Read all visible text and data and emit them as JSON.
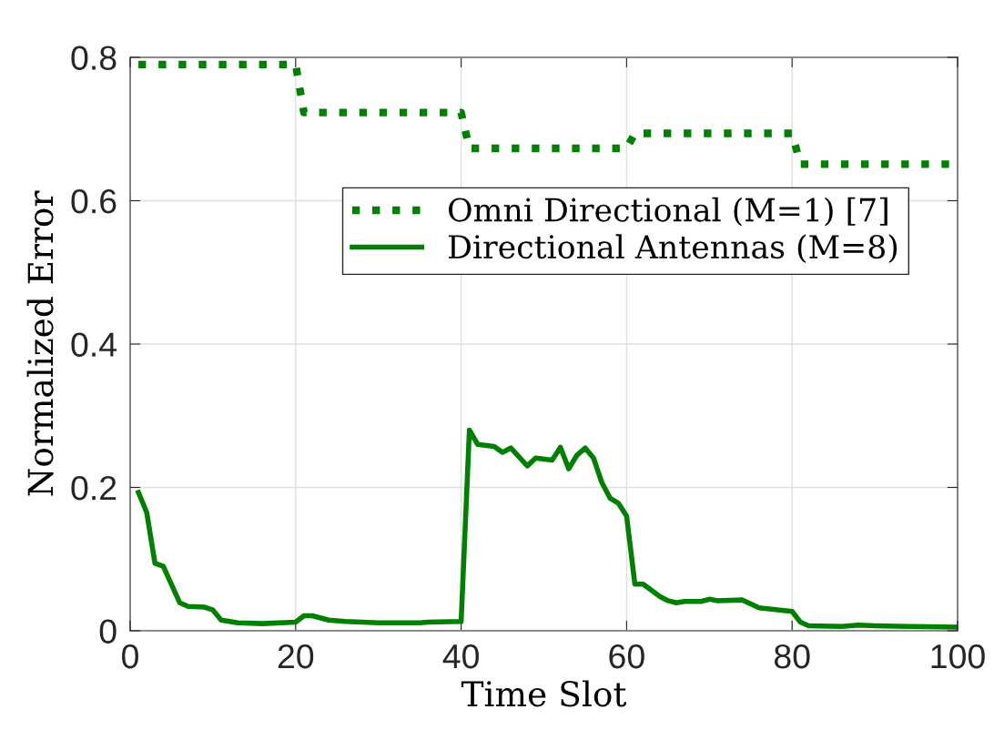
{
  "chart_data": {
    "type": "line",
    "xlabel": "Time Slot",
    "ylabel": "Normalized Error",
    "xlim": [
      0,
      100
    ],
    "ylim": [
      0,
      0.8
    ],
    "xticks": [
      0,
      20,
      40,
      60,
      80,
      100
    ],
    "yticks": [
      0,
      0.2,
      0.4,
      0.6,
      0.8
    ],
    "grid": true,
    "legend": "top right",
    "series": [
      {
        "name": "Omni Directional (M=1) [7]",
        "color": "#008000",
        "line_style": "dotted",
        "x": [
          1,
          20,
          21,
          40,
          41,
          60,
          61,
          80,
          81,
          100
        ],
        "values": [
          0.79,
          0.79,
          0.723,
          0.723,
          0.673,
          0.673,
          0.694,
          0.694,
          0.651,
          0.651
        ]
      },
      {
        "name": "Directional Antennas (M=8)",
        "color": "#008000",
        "line_style": "solid",
        "x": [
          1,
          2,
          3,
          4,
          6,
          7,
          9,
          10,
          11,
          13,
          16,
          20,
          21,
          22,
          24,
          26,
          30,
          35,
          36,
          40,
          41,
          42,
          44,
          45,
          46,
          48,
          49,
          51,
          52,
          53,
          54,
          55,
          56,
          57,
          58,
          59,
          60,
          61,
          62,
          64,
          65,
          66,
          67,
          69,
          70,
          71,
          74,
          76,
          80,
          81,
          82,
          86,
          88,
          90,
          94,
          100
        ],
        "values": [
          0.193,
          0.165,
          0.094,
          0.09,
          0.039,
          0.034,
          0.033,
          0.029,
          0.015,
          0.011,
          0.01,
          0.012,
          0.021,
          0.021,
          0.015,
          0.013,
          0.011,
          0.011,
          0.012,
          0.013,
          0.28,
          0.26,
          0.257,
          0.249,
          0.255,
          0.23,
          0.241,
          0.238,
          0.256,
          0.226,
          0.245,
          0.255,
          0.241,
          0.207,
          0.185,
          0.178,
          0.16,
          0.065,
          0.065,
          0.048,
          0.042,
          0.039,
          0.041,
          0.041,
          0.044,
          0.042,
          0.043,
          0.032,
          0.027,
          0.012,
          0.007,
          0.006,
          0.008,
          0.007,
          0.006,
          0.005
        ]
      }
    ]
  }
}
